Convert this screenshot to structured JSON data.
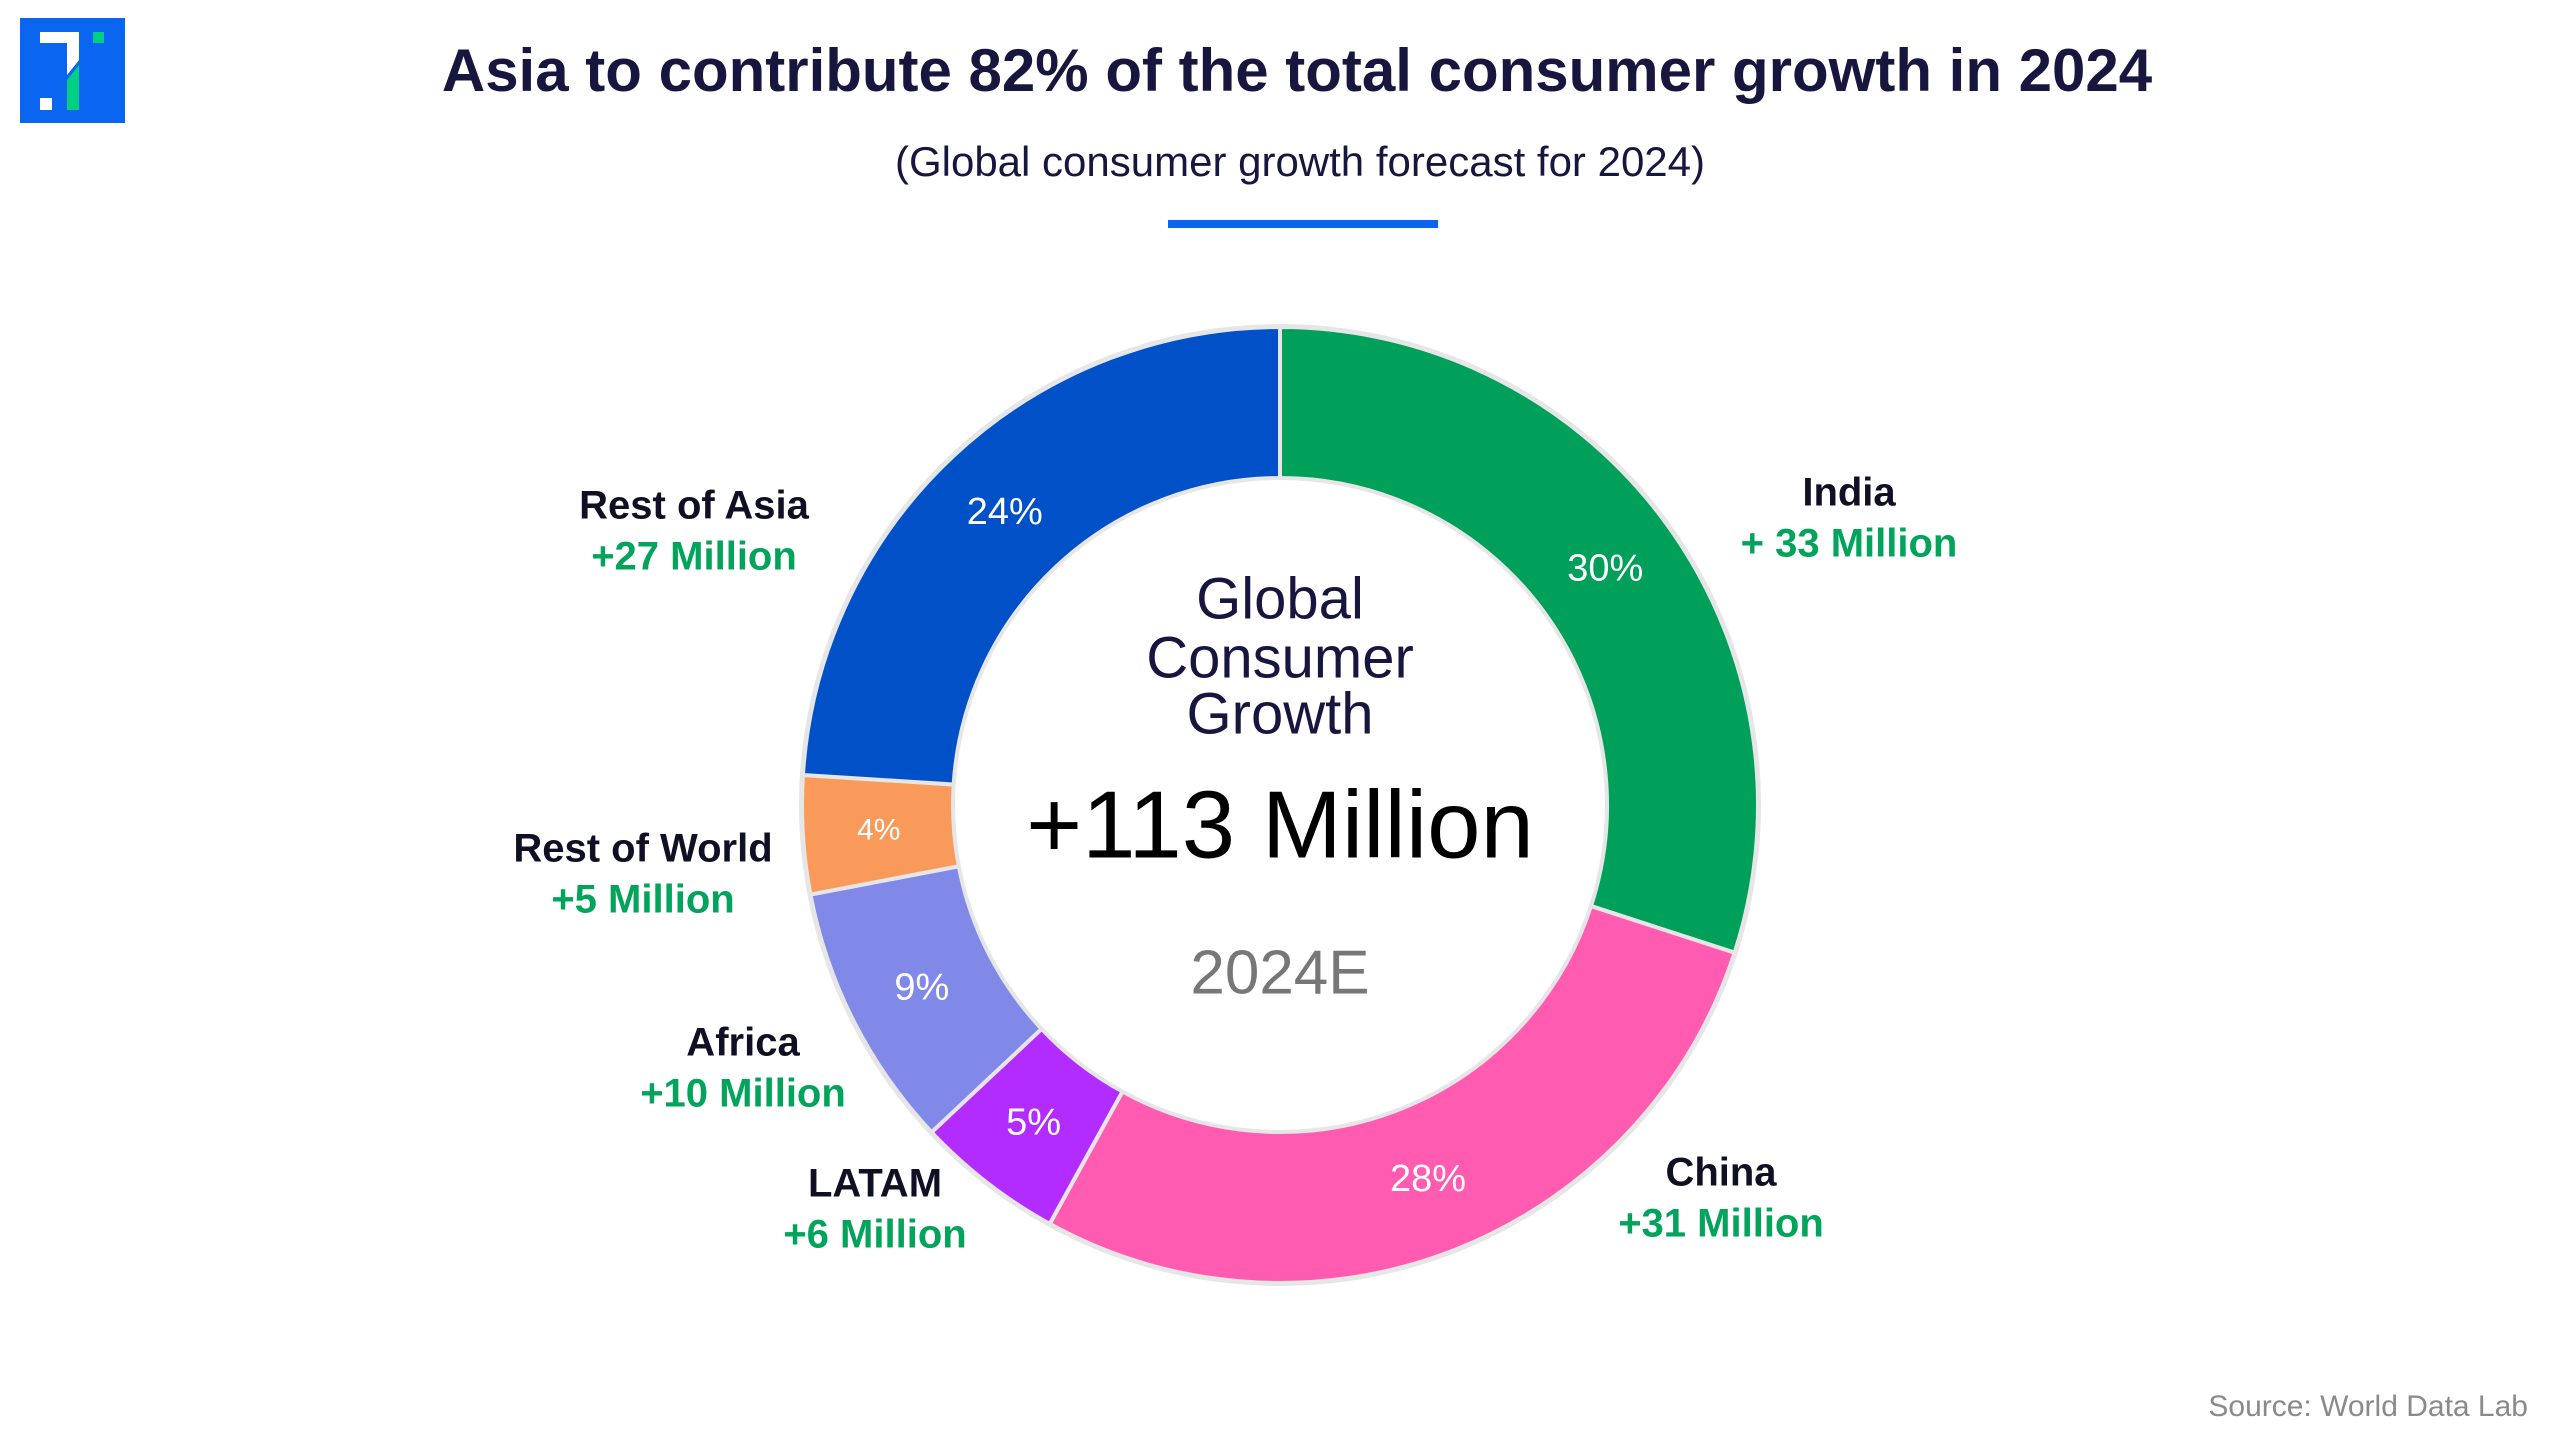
{
  "title": "Asia to contribute 82% of the total consumer growth in 2024",
  "subtitle": "(Global consumer growth forecast for 2024)",
  "source": "Source: World Data Lab",
  "colors": {
    "accent": "#0a66f0",
    "title": "#16163f",
    "value_text": "#02a35a"
  },
  "chart_data": {
    "type": "pie",
    "variant": "donut",
    "start": "top, clockwise",
    "center_text": {
      "line1": "Global",
      "line2": "Consumer",
      "line3": "Growth",
      "total": "+113 Million",
      "period": "2024E"
    },
    "slices": [
      {
        "name": "India",
        "percent": 30,
        "percent_label": "30%",
        "value_label": "+ 33 Million",
        "value_million": 33,
        "color": "#00a05a"
      },
      {
        "name": "China",
        "percent": 28,
        "percent_label": "28%",
        "value_label": "+31 Million",
        "value_million": 31,
        "color": "#ff5bb0"
      },
      {
        "name": "LATAM",
        "percent": 5,
        "percent_label": "5%",
        "value_label": "+6 Million",
        "value_million": 6,
        "color": "#b32cff"
      },
      {
        "name": "Africa",
        "percent": 9,
        "percent_label": "9%",
        "value_label": "+10 Million",
        "value_million": 10,
        "color": "#8088e8"
      },
      {
        "name": "Rest of World",
        "percent": 4,
        "percent_label": "4%",
        "value_label": "+5 Million",
        "value_million": 5,
        "color": "#fa9a5a"
      },
      {
        "name": "Rest of Asia",
        "percent": 24,
        "percent_label": "24%",
        "value_label": "+27 Million",
        "value_million": 27,
        "color": "#0050c8"
      }
    ]
  }
}
